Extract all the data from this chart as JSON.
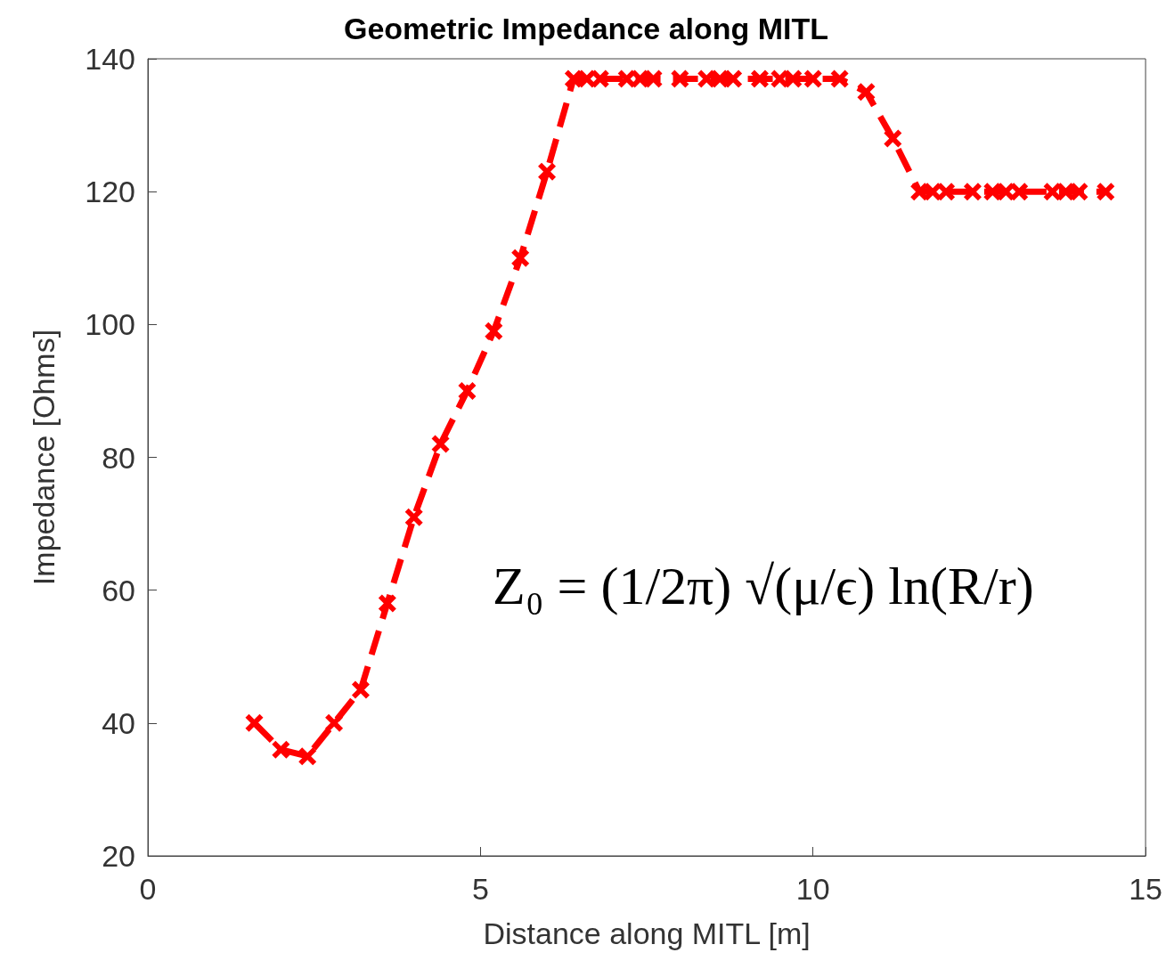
{
  "chart_data": {
    "type": "line",
    "title": "Geometric Impedance along MITL",
    "xlabel": "Distance along MITL [m]",
    "ylabel": "Impedance [Ohms]",
    "annotations": [
      "Z₀ = (1/2π) √(μ/ϵ) ln(R/r)"
    ],
    "series": [
      {
        "color": "#ff0000",
        "x": [
          1.6,
          2.0,
          2.4,
          2.8,
          3.2,
          3.6,
          4.0,
          4.4,
          4.8,
          5.2,
          5.6,
          6.0,
          6.4,
          6.6,
          6.8,
          7.2,
          7.4,
          7.6,
          8.0,
          8.4,
          8.6,
          8.8,
          9.2,
          9.5,
          9.7,
          10.0,
          10.4,
          10.8,
          11.2,
          11.6,
          11.8,
          12.0,
          12.4,
          12.7,
          12.9,
          13.1,
          13.6,
          13.8,
          14.0,
          14.4
        ],
        "values": [
          40,
          36,
          35,
          40,
          45,
          58,
          71,
          82,
          90,
          99,
          110,
          123,
          137,
          137,
          137,
          137,
          137,
          137,
          137,
          137,
          137,
          137,
          137,
          137,
          137,
          137,
          137,
          135,
          128,
          120,
          120,
          120,
          120,
          120,
          120,
          120,
          120,
          120,
          120,
          120
        ]
      }
    ],
    "xlim": [
      0,
      15
    ],
    "xticks": [
      0,
      5,
      10,
      15
    ],
    "ylim": [
      20,
      140
    ],
    "yticks": [
      20,
      40,
      60,
      80,
      100,
      120,
      140
    ],
    "grid": false,
    "marker": "cross",
    "line_style": "dashed"
  }
}
